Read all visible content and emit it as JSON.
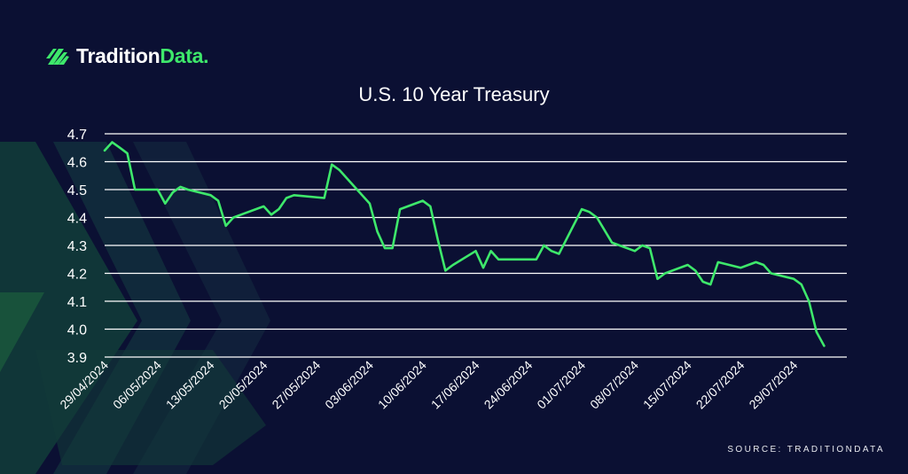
{
  "brand": {
    "name_part1": "Tradition",
    "name_part2": "Data",
    "name_dot": ".",
    "icon": "tradition-data-logo-icon"
  },
  "colors": {
    "background": "#0b1033",
    "accent": "#3ee86b",
    "grid": "#ffffff",
    "text": "#ffffff"
  },
  "source": "SOURCE: TRADITIONDATA",
  "chart_data": {
    "type": "line",
    "title": "U.S. 10 Year Treasury",
    "xlabel": "",
    "ylabel": "",
    "ylim": [
      3.9,
      4.7
    ],
    "yticks": [
      "4.7",
      "4.6",
      "4.5",
      "4.4",
      "4.3",
      "4.2",
      "4.1",
      "4.0",
      "3.9"
    ],
    "xlim": [
      "2024-04-29",
      "2024-08-05"
    ],
    "xticks": [
      "29/04/2024",
      "06/05/2024",
      "13/05/2024",
      "20/05/2024",
      "27/05/2024",
      "03/06/2024",
      "10/06/2024",
      "17/06/2024",
      "24/06/2024",
      "01/07/2024",
      "08/07/2024",
      "15/07/2024",
      "22/07/2024",
      "29/07/2024"
    ],
    "grid": true,
    "legend": "none",
    "series": [
      {
        "color": "#3ee86b",
        "points": [
          [
            "2024-04-29",
            4.64
          ],
          [
            "2024-04-30",
            4.67
          ],
          [
            "2024-05-01",
            4.65
          ],
          [
            "2024-05-02",
            4.63
          ],
          [
            "2024-05-03",
            4.5
          ],
          [
            "2024-05-06",
            4.5
          ],
          [
            "2024-05-07",
            4.45
          ],
          [
            "2024-05-08",
            4.49
          ],
          [
            "2024-05-09",
            4.51
          ],
          [
            "2024-05-10",
            4.5
          ],
          [
            "2024-05-13",
            4.48
          ],
          [
            "2024-05-14",
            4.46
          ],
          [
            "2024-05-15",
            4.37
          ],
          [
            "2024-05-16",
            4.4
          ],
          [
            "2024-05-17",
            4.41
          ],
          [
            "2024-05-20",
            4.44
          ],
          [
            "2024-05-21",
            4.41
          ],
          [
            "2024-05-22",
            4.43
          ],
          [
            "2024-05-23",
            4.47
          ],
          [
            "2024-05-24",
            4.48
          ],
          [
            "2024-05-28",
            4.47
          ],
          [
            "2024-05-29",
            4.59
          ],
          [
            "2024-05-30",
            4.57
          ],
          [
            "2024-05-31",
            4.54
          ],
          [
            "2024-06-03",
            4.45
          ],
          [
            "2024-06-04",
            4.35
          ],
          [
            "2024-06-05",
            4.29
          ],
          [
            "2024-06-06",
            4.29
          ],
          [
            "2024-06-07",
            4.43
          ],
          [
            "2024-06-10",
            4.46
          ],
          [
            "2024-06-11",
            4.44
          ],
          [
            "2024-06-12",
            4.32
          ],
          [
            "2024-06-13",
            4.21
          ],
          [
            "2024-06-14",
            4.23
          ],
          [
            "2024-06-17",
            4.28
          ],
          [
            "2024-06-18",
            4.22
          ],
          [
            "2024-06-19",
            4.28
          ],
          [
            "2024-06-20",
            4.25
          ],
          [
            "2024-06-21",
            4.25
          ],
          [
            "2024-06-24",
            4.25
          ],
          [
            "2024-06-25",
            4.25
          ],
          [
            "2024-06-26",
            4.3
          ],
          [
            "2024-06-27",
            4.28
          ],
          [
            "2024-06-28",
            4.27
          ],
          [
            "2024-07-01",
            4.43
          ],
          [
            "2024-07-02",
            4.42
          ],
          [
            "2024-07-03",
            4.4
          ],
          [
            "2024-07-05",
            4.31
          ],
          [
            "2024-07-08",
            4.28
          ],
          [
            "2024-07-09",
            4.3
          ],
          [
            "2024-07-10",
            4.29
          ],
          [
            "2024-07-11",
            4.18
          ],
          [
            "2024-07-12",
            4.2
          ],
          [
            "2024-07-15",
            4.23
          ],
          [
            "2024-07-16",
            4.21
          ],
          [
            "2024-07-17",
            4.17
          ],
          [
            "2024-07-18",
            4.16
          ],
          [
            "2024-07-19",
            4.24
          ],
          [
            "2024-07-22",
            4.22
          ],
          [
            "2024-07-23",
            4.23
          ],
          [
            "2024-07-24",
            4.24
          ],
          [
            "2024-07-25",
            4.23
          ],
          [
            "2024-07-26",
            4.2
          ],
          [
            "2024-07-29",
            4.18
          ],
          [
            "2024-07-30",
            4.16
          ],
          [
            "2024-07-31",
            4.1
          ],
          [
            "2024-08-01",
            3.99
          ],
          [
            "2024-08-02",
            3.94
          ]
        ]
      }
    ]
  }
}
